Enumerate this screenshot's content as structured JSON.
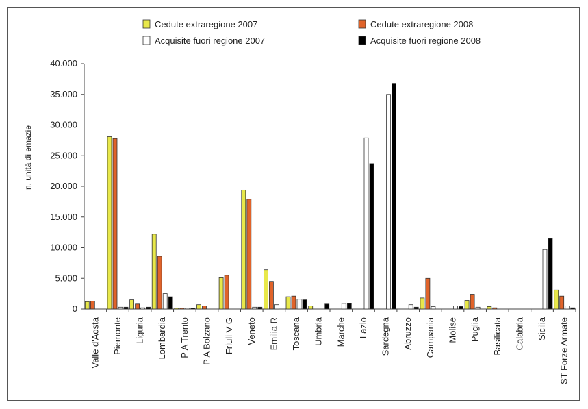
{
  "chart_data": {
    "type": "bar",
    "title": "",
    "xlabel": "",
    "ylabel": "n. unità di emazie",
    "ylim": [
      0,
      40000
    ],
    "yticks": [
      {
        "value": 0,
        "label": "0"
      },
      {
        "value": 5000,
        "label": "5.000"
      },
      {
        "value": 10000,
        "label": "10.000"
      },
      {
        "value": 15000,
        "label": "15.000"
      },
      {
        "value": 20000,
        "label": "20.000"
      },
      {
        "value": 25000,
        "label": "25.000"
      },
      {
        "value": 30000,
        "label": "30.000"
      },
      {
        "value": 35000,
        "label": "35.000"
      },
      {
        "value": 40000,
        "label": "40.000"
      }
    ],
    "grid": false,
    "legend_position": "top",
    "categories": [
      "Valle d'Aosta",
      "Piemonte",
      "Liguria",
      "Lombardia",
      "P A Trento",
      "P A Bolzano",
      "Friuli V G",
      "Veneto",
      "Emilia R",
      "Toscana",
      "Umbria",
      "Marche",
      "Lazio",
      "Sardegna",
      "Abruzzo",
      "Campania",
      "Molise",
      "Puglia",
      "Basilicata",
      "Calabria",
      "Sicilia",
      "ST Forze Armate"
    ],
    "series": [
      {
        "name": "Cedute extraregione 2007",
        "color": "#e8e84a",
        "values": [
          1200,
          28100,
          1500,
          12200,
          150,
          700,
          5100,
          19400,
          6400,
          2000,
          500,
          0,
          0,
          0,
          0,
          1800,
          0,
          1400,
          400,
          0,
          0,
          3100
        ]
      },
      {
        "name": "Cedute extraregione 2008",
        "color": "#e0632a",
        "values": [
          1300,
          27800,
          800,
          8600,
          150,
          500,
          5500,
          17900,
          4500,
          2100,
          0,
          0,
          0,
          0,
          0,
          5000,
          0,
          2400,
          200,
          0,
          0,
          2100
        ]
      },
      {
        "name": "Acquisite fuori regione 2007",
        "color": "#ffffff",
        "values": [
          0,
          300,
          200,
          2500,
          150,
          0,
          0,
          300,
          700,
          1600,
          0,
          900,
          27900,
          35000,
          700,
          400,
          500,
          300,
          0,
          0,
          9700,
          500
        ]
      },
      {
        "name": "Acquisite fuori regione 2008",
        "color": "#000000",
        "values": [
          0,
          300,
          300,
          2000,
          150,
          0,
          0,
          300,
          0,
          1500,
          800,
          900,
          23700,
          36800,
          300,
          0,
          400,
          0,
          0,
          0,
          11500,
          200
        ]
      }
    ]
  }
}
